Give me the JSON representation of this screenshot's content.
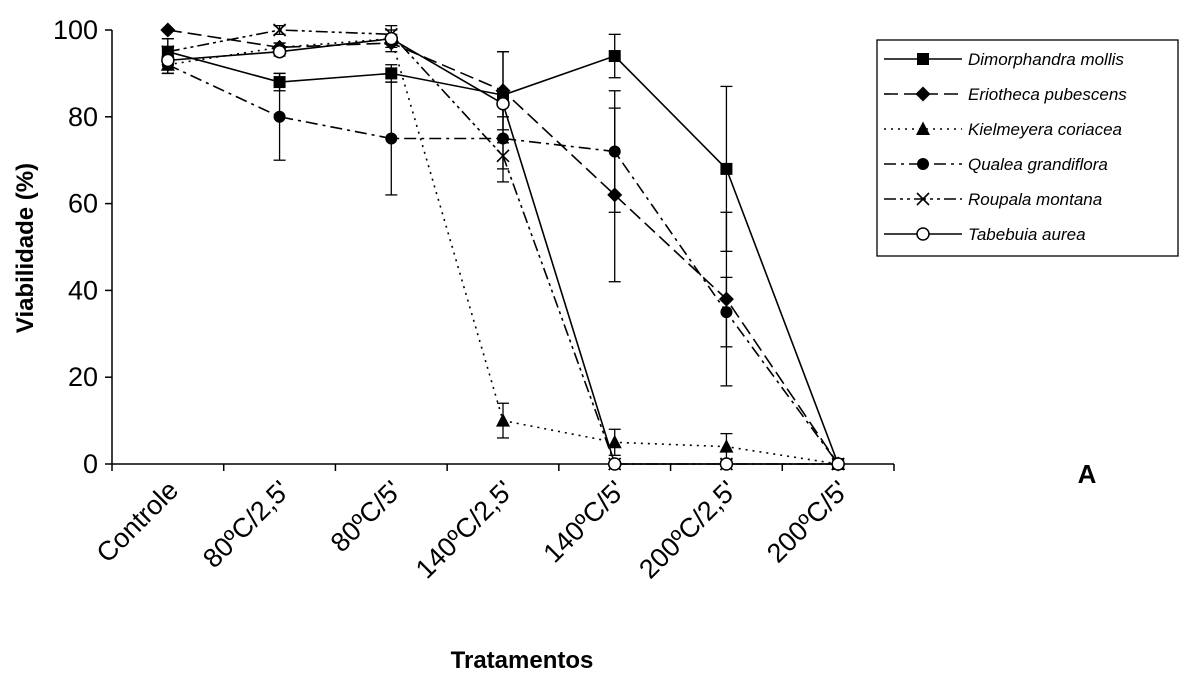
{
  "chart_data": {
    "type": "line",
    "categories": [
      "Controle",
      "80ºC/2,5'",
      "80ºC/5'",
      "140ºC/2,5'",
      "140ºC/5'",
      "200ºC/2,5'",
      "200ºC/5'"
    ],
    "xlabel": "Tratamentos",
    "ylabel": "Viabilidade (%)",
    "ylim": [
      0,
      100
    ],
    "yticks": [
      0,
      20,
      40,
      60,
      80,
      100
    ],
    "grid": false,
    "legend_position": "top-right",
    "panel_label": "A",
    "series": [
      {
        "name": "Dimorphandra mollis",
        "marker": "square",
        "dash": "solid",
        "values": [
          95,
          88,
          90,
          85,
          94,
          68,
          0
        ],
        "errors": [
          3,
          2,
          2,
          10,
          5,
          19,
          0
        ]
      },
      {
        "name": "Eriotheca pubescens",
        "marker": "diamond",
        "dash": "long-dash",
        "values": [
          100,
          96,
          97,
          86,
          62,
          38,
          0
        ],
        "errors": [
          0,
          1,
          1,
          9,
          20,
          20,
          0
        ]
      },
      {
        "name": "Kielmeyera coriacea",
        "marker": "triangle",
        "dash": "dotted",
        "values": [
          92,
          96,
          98,
          10,
          5,
          4,
          0
        ],
        "errors": [
          2,
          1,
          1,
          4,
          3,
          3,
          0
        ]
      },
      {
        "name": "Qualea grandiflora",
        "marker": "circle-filled",
        "dash": "dash-dot",
        "values": [
          92,
          80,
          75,
          75,
          72,
          35,
          0
        ],
        "errors": [
          2,
          10,
          13,
          10,
          14,
          8,
          0
        ]
      },
      {
        "name": "Roupala montana",
        "marker": "cross",
        "dash": "dash-dot-dot",
        "values": [
          95,
          100,
          99,
          71,
          0,
          0,
          0
        ],
        "errors": [
          3,
          1,
          1,
          3,
          0,
          0,
          0
        ]
      },
      {
        "name": "Tabebuia aurea",
        "marker": "circle-open",
        "dash": "solid",
        "values": [
          93,
          95,
          98,
          83,
          0,
          0,
          0
        ],
        "errors": [
          3,
          1,
          3,
          3,
          0,
          0,
          0
        ]
      }
    ]
  }
}
